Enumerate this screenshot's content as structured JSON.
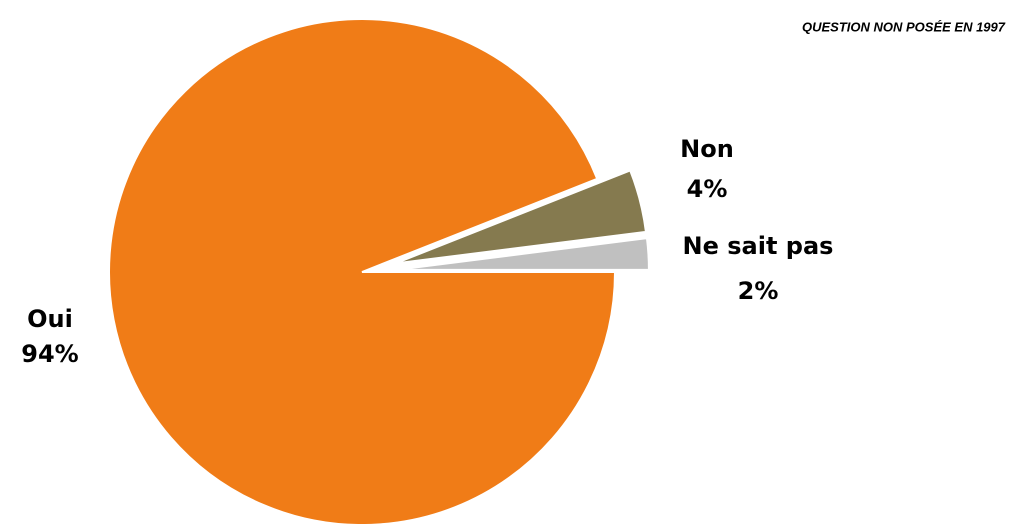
{
  "chart_data": {
    "type": "pie",
    "note": "QUESTION NON POSÉE EN 1997",
    "categories": [
      "Oui",
      "Non",
      "Ne sait pas"
    ],
    "values": [
      94,
      4,
      2
    ],
    "value_labels": [
      "94%",
      "4%",
      "2%"
    ],
    "colors": [
      "#f07c17",
      "#857a4f",
      "#c0c0c0"
    ],
    "explode": [
      false,
      true,
      true
    ]
  }
}
